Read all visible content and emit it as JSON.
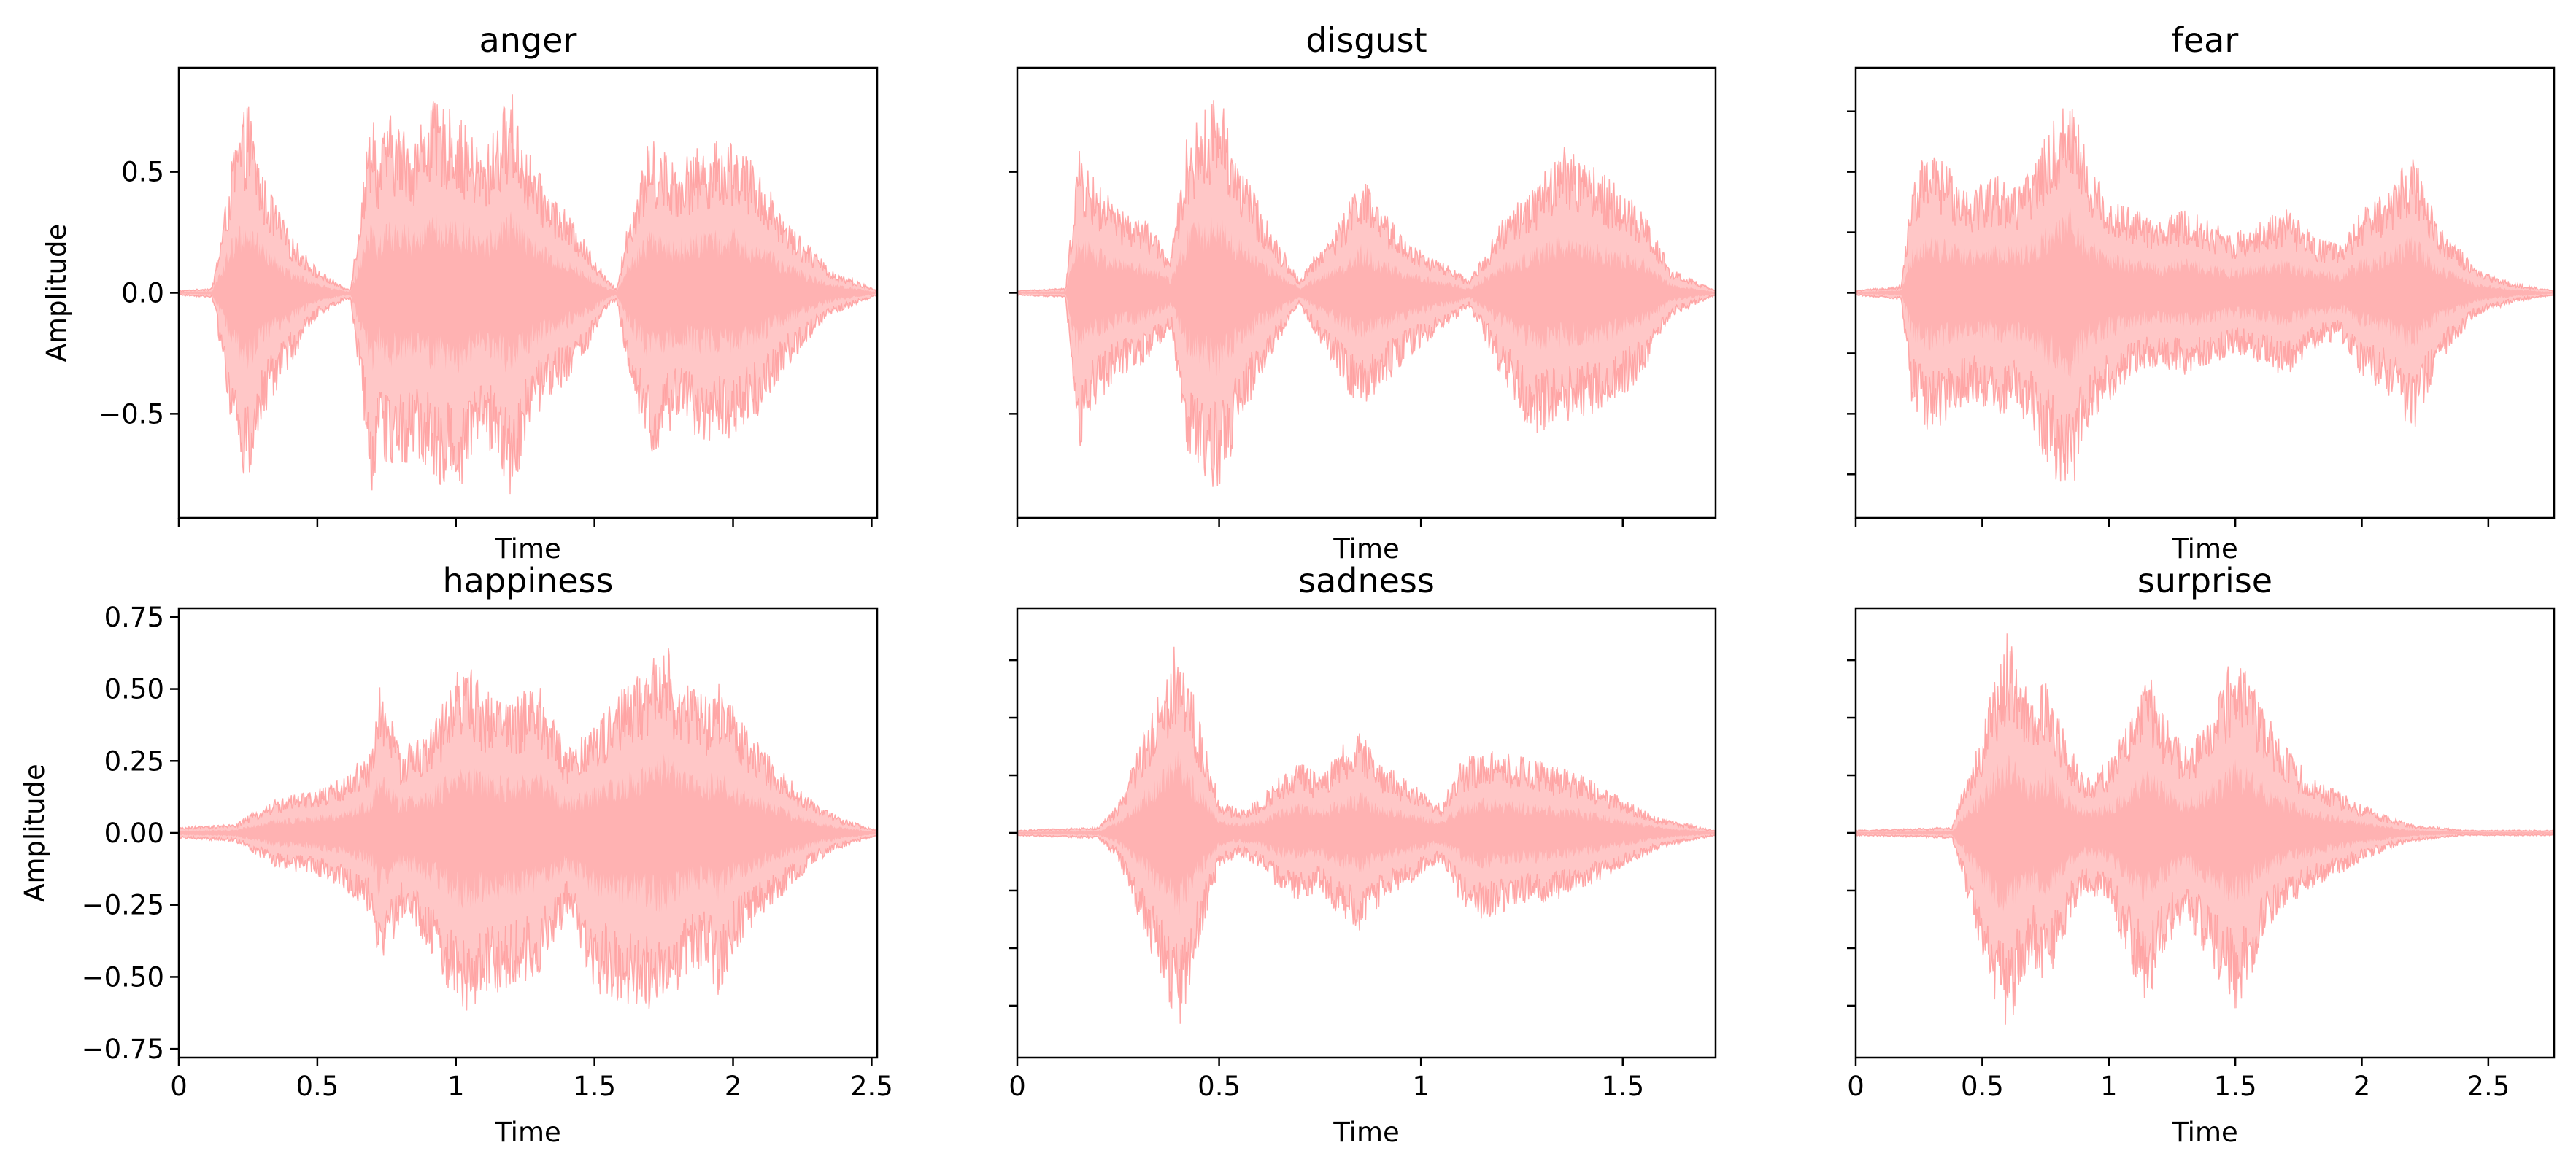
{
  "chart_data": [
    {
      "type": "area",
      "title": "anger",
      "xlabel": "Time",
      "ylabel": "Amplitude",
      "xlim": [
        0,
        2.52
      ],
      "ylim": [
        -0.93,
        0.93
      ],
      "xticks": [
        0,
        0.5,
        1,
        1.5,
        2,
        2.5
      ],
      "xtick_labels": [],
      "yticks": [
        -0.5,
        0.0,
        0.5
      ],
      "ytick_labels": [
        "−0.5",
        "0.0",
        "0.5"
      ],
      "color": "#ff9999",
      "envelope": {
        "t": [
          0,
          0.12,
          0.16,
          0.2,
          0.25,
          0.3,
          0.4,
          0.5,
          0.6,
          0.62,
          0.7,
          0.72,
          0.75,
          0.85,
          0.9,
          1.0,
          1.1,
          1.2,
          1.25,
          1.3,
          1.45,
          1.55,
          1.58,
          1.62,
          1.7,
          1.8,
          1.9,
          2.0,
          2.1,
          2.2,
          2.35,
          2.52
        ],
        "max": [
          0.01,
          0.02,
          0.3,
          0.62,
          0.8,
          0.5,
          0.25,
          0.1,
          0.02,
          0.02,
          0.83,
          0.55,
          0.75,
          0.65,
          0.8,
          0.75,
          0.58,
          0.85,
          0.62,
          0.5,
          0.25,
          0.05,
          0.02,
          0.3,
          0.65,
          0.55,
          0.62,
          0.65,
          0.5,
          0.3,
          0.1,
          0.01
        ],
        "min": [
          -0.01,
          -0.02,
          -0.3,
          -0.65,
          -0.82,
          -0.55,
          -0.3,
          -0.1,
          -0.03,
          -0.03,
          -0.85,
          -0.6,
          -0.75,
          -0.7,
          -0.75,
          -0.85,
          -0.6,
          -0.85,
          -0.65,
          -0.5,
          -0.3,
          -0.06,
          -0.03,
          -0.35,
          -0.7,
          -0.55,
          -0.62,
          -0.6,
          -0.5,
          -0.3,
          -0.1,
          -0.01
        ]
      }
    },
    {
      "type": "area",
      "title": "disgust",
      "xlabel": "Time",
      "ylabel": "",
      "xlim": [
        0,
        1.73
      ],
      "ylim": [
        -0.93,
        0.93
      ],
      "xticks": [
        0,
        0.5,
        1,
        1.5
      ],
      "xtick_labels": [],
      "yticks": [
        -0.5,
        0.0,
        0.5
      ],
      "ytick_labels": [],
      "color": "#ff9999",
      "envelope": {
        "t": [
          0,
          0.12,
          0.15,
          0.18,
          0.25,
          0.32,
          0.38,
          0.42,
          0.5,
          0.55,
          0.62,
          0.7,
          0.72,
          0.8,
          0.85,
          0.9,
          0.98,
          1.08,
          1.12,
          1.2,
          1.28,
          1.35,
          1.45,
          1.55,
          1.62,
          1.73
        ],
        "max": [
          0.01,
          0.02,
          0.6,
          0.5,
          0.35,
          0.3,
          0.15,
          0.65,
          0.85,
          0.55,
          0.3,
          0.05,
          0.12,
          0.3,
          0.5,
          0.35,
          0.2,
          0.1,
          0.05,
          0.3,
          0.45,
          0.62,
          0.5,
          0.35,
          0.1,
          0.01
        ],
        "min": [
          -0.01,
          -0.02,
          -0.68,
          -0.5,
          -0.35,
          -0.3,
          -0.15,
          -0.65,
          -0.85,
          -0.55,
          -0.3,
          -0.05,
          -0.12,
          -0.35,
          -0.5,
          -0.4,
          -0.25,
          -0.12,
          -0.06,
          -0.35,
          -0.6,
          -0.55,
          -0.5,
          -0.35,
          -0.1,
          -0.01
        ]
      }
    },
    {
      "type": "area",
      "title": "fear",
      "xlabel": "Time",
      "ylabel": "",
      "xlim": [
        0,
        2.76
      ],
      "ylim": [
        -0.93,
        0.93
      ],
      "xticks": [
        0,
        0.5,
        1,
        1.5,
        2,
        2.5
      ],
      "xtick_labels": [],
      "yticks": [
        -0.75,
        -0.5,
        -0.25,
        0.0,
        0.25,
        0.5,
        0.75
      ],
      "ytick_labels": [],
      "color": "#ff9999",
      "envelope": {
        "t": [
          0,
          0.18,
          0.22,
          0.28,
          0.35,
          0.45,
          0.55,
          0.65,
          0.7,
          0.8,
          0.85,
          0.92,
          1.0,
          1.1,
          1.2,
          1.3,
          1.4,
          1.5,
          1.6,
          1.7,
          1.8,
          1.85,
          1.92,
          2.0,
          2.1,
          2.2,
          2.3,
          2.45,
          2.6,
          2.76
        ],
        "max": [
          0.01,
          0.03,
          0.45,
          0.6,
          0.55,
          0.45,
          0.5,
          0.45,
          0.55,
          0.75,
          0.85,
          0.55,
          0.4,
          0.35,
          0.3,
          0.35,
          0.3,
          0.25,
          0.3,
          0.35,
          0.25,
          0.22,
          0.2,
          0.35,
          0.42,
          0.6,
          0.3,
          0.1,
          0.04,
          0.01
        ],
        "min": [
          -0.01,
          -0.03,
          -0.45,
          -0.6,
          -0.55,
          -0.45,
          -0.5,
          -0.5,
          -0.6,
          -0.8,
          -0.85,
          -0.55,
          -0.45,
          -0.35,
          -0.3,
          -0.35,
          -0.3,
          -0.25,
          -0.3,
          -0.35,
          -0.25,
          -0.22,
          -0.2,
          -0.35,
          -0.42,
          -0.6,
          -0.3,
          -0.1,
          -0.04,
          -0.01
        ]
      }
    },
    {
      "type": "area",
      "title": "happiness",
      "xlabel": "Time",
      "ylabel": "Amplitude",
      "xlim": [
        0,
        2.52
      ],
      "ylim": [
        -0.78,
        0.78
      ],
      "xticks": [
        0,
        0.5,
        1,
        1.5,
        2,
        2.5
      ],
      "xtick_labels": [
        "0",
        "0.5",
        "1",
        "1.5",
        "2",
        "2.5"
      ],
      "yticks": [
        -0.75,
        -0.5,
        -0.25,
        0.0,
        0.25,
        0.5,
        0.75
      ],
      "ytick_labels": [
        "−0.75",
        "−0.50",
        "−0.25",
        "0.00",
        "0.25",
        "0.50",
        "0.75"
      ],
      "color": "#ff9999",
      "envelope": {
        "t": [
          0,
          0.2,
          0.35,
          0.5,
          0.6,
          0.7,
          0.72,
          0.8,
          0.9,
          1.0,
          1.03,
          1.1,
          1.2,
          1.3,
          1.4,
          1.5,
          1.6,
          1.7,
          1.75,
          1.8,
          1.9,
          1.95,
          2.0,
          2.1,
          2.2,
          2.3,
          2.4,
          2.52
        ],
        "max": [
          0.02,
          0.03,
          0.12,
          0.15,
          0.2,
          0.3,
          0.55,
          0.3,
          0.35,
          0.55,
          0.62,
          0.5,
          0.48,
          0.52,
          0.3,
          0.38,
          0.5,
          0.6,
          0.7,
          0.55,
          0.48,
          0.55,
          0.45,
          0.3,
          0.2,
          0.1,
          0.05,
          0.01
        ],
        "min": [
          -0.02,
          -0.03,
          -0.12,
          -0.15,
          -0.2,
          -0.3,
          -0.55,
          -0.3,
          -0.4,
          -0.6,
          -0.65,
          -0.58,
          -0.55,
          -0.5,
          -0.3,
          -0.55,
          -0.6,
          -0.62,
          -0.7,
          -0.55,
          -0.45,
          -0.58,
          -0.42,
          -0.3,
          -0.2,
          -0.1,
          -0.05,
          -0.01
        ]
      }
    },
    {
      "type": "area",
      "title": "sadness",
      "xlabel": "Time",
      "ylabel": "",
      "xlim": [
        0,
        1.73
      ],
      "ylim": [
        -0.78,
        0.78
      ],
      "xticks": [
        0,
        0.5,
        1,
        1.5
      ],
      "xtick_labels": [
        "0",
        "0.5",
        "1",
        "1.5"
      ],
      "yticks": [
        -0.6,
        -0.4,
        -0.2,
        0.0,
        0.2,
        0.4,
        0.6
      ],
      "ytick_labels": [],
      "color": "#ff9999",
      "envelope": {
        "t": [
          0,
          0.2,
          0.25,
          0.3,
          0.35,
          0.4,
          0.45,
          0.5,
          0.55,
          0.6,
          0.65,
          0.7,
          0.75,
          0.8,
          0.85,
          0.9,
          0.95,
          1.0,
          1.05,
          1.1,
          1.15,
          1.2,
          1.3,
          1.4,
          1.5,
          1.6,
          1.73
        ],
        "max": [
          0.01,
          0.02,
          0.1,
          0.3,
          0.5,
          0.7,
          0.4,
          0.12,
          0.08,
          0.12,
          0.2,
          0.25,
          0.2,
          0.3,
          0.35,
          0.25,
          0.2,
          0.15,
          0.1,
          0.25,
          0.3,
          0.28,
          0.25,
          0.2,
          0.12,
          0.05,
          0.01
        ],
        "min": [
          -0.01,
          -0.02,
          -0.1,
          -0.3,
          -0.5,
          -0.7,
          -0.4,
          -0.12,
          -0.08,
          -0.12,
          -0.2,
          -0.25,
          -0.2,
          -0.3,
          -0.35,
          -0.25,
          -0.2,
          -0.15,
          -0.1,
          -0.25,
          -0.3,
          -0.28,
          -0.25,
          -0.2,
          -0.12,
          -0.05,
          -0.01
        ]
      }
    },
    {
      "type": "area",
      "title": "surprise",
      "xlabel": "Time",
      "ylabel": "",
      "xlim": [
        0,
        2.76
      ],
      "ylim": [
        -0.78,
        0.78
      ],
      "xticks": [
        0,
        0.5,
        1,
        1.5,
        2,
        2.5
      ],
      "xtick_labels": [
        "0",
        "0.5",
        "1",
        "1.5",
        "2",
        "2.5"
      ],
      "yticks": [
        -0.6,
        -0.4,
        -0.2,
        0.0,
        0.2,
        0.4,
        0.6
      ],
      "ytick_labels": [],
      "color": "#ff9999",
      "envelope": {
        "t": [
          0,
          0.38,
          0.42,
          0.5,
          0.55,
          0.6,
          0.7,
          0.75,
          0.85,
          0.9,
          1.0,
          1.1,
          1.15,
          1.2,
          1.3,
          1.4,
          1.5,
          1.55,
          1.6,
          1.7,
          1.8,
          1.9,
          2.0,
          2.1,
          2.2,
          2.4,
          2.76
        ],
        "max": [
          0.01,
          0.02,
          0.15,
          0.35,
          0.55,
          0.7,
          0.45,
          0.55,
          0.3,
          0.2,
          0.25,
          0.45,
          0.58,
          0.45,
          0.3,
          0.4,
          0.65,
          0.55,
          0.45,
          0.3,
          0.2,
          0.15,
          0.1,
          0.06,
          0.03,
          0.01,
          0.01
        ],
        "min": [
          -0.01,
          -0.02,
          -0.15,
          -0.45,
          -0.6,
          -0.7,
          -0.45,
          -0.55,
          -0.3,
          -0.2,
          -0.25,
          -0.5,
          -0.62,
          -0.45,
          -0.3,
          -0.45,
          -0.62,
          -0.55,
          -0.4,
          -0.25,
          -0.2,
          -0.15,
          -0.1,
          -0.06,
          -0.03,
          -0.01,
          -0.01
        ]
      }
    }
  ]
}
